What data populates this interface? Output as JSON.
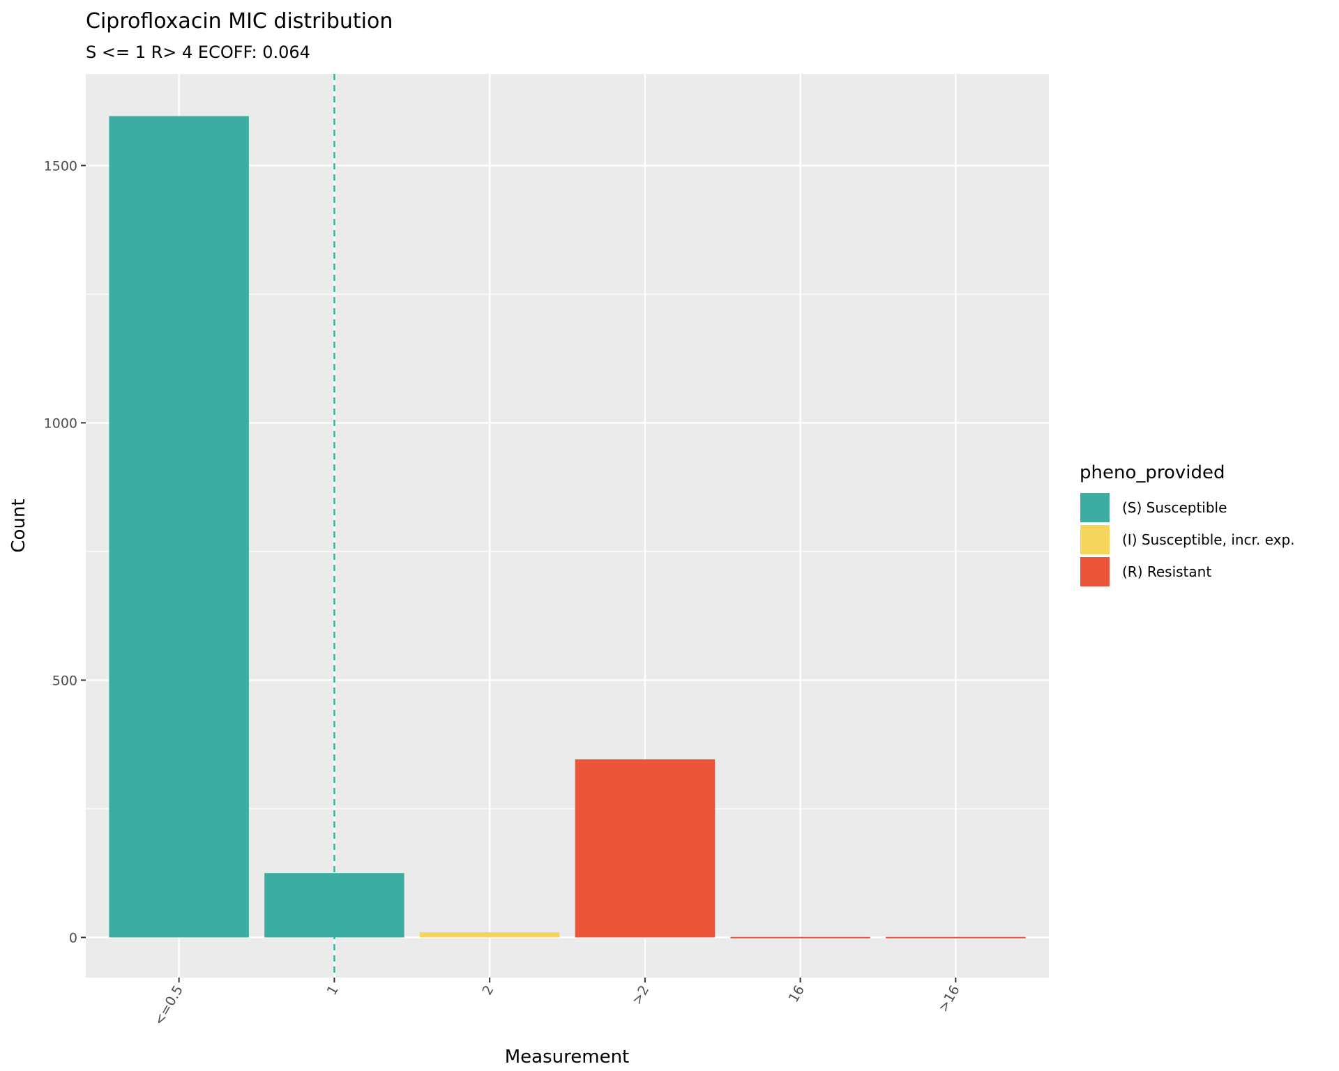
{
  "chart_data": {
    "type": "bar",
    "title": "Ciprofloxacin MIC distribution",
    "subtitle": "S <= 1 R> 4 ECOFF: 0.064",
    "xlabel": "Measurement",
    "ylabel": "Count",
    "categories": [
      "<=0.5",
      "1",
      "2",
      ">2",
      "16",
      ">16"
    ],
    "bars": [
      {
        "category": "<=0.5",
        "value": 1596,
        "group": "(S) Susceptible"
      },
      {
        "category": "1",
        "value": 125,
        "group": "(S) Susceptible"
      },
      {
        "category": "2",
        "value": 10,
        "group": "(I) Susceptible, incr. exp."
      },
      {
        "category": ">2",
        "value": 346,
        "group": "(R) Resistant"
      },
      {
        "category": "16",
        "value": 1,
        "group": "(R) Resistant"
      },
      {
        "category": ">16",
        "value": 1,
        "group": "(R) Resistant"
      }
    ],
    "yticks": [
      0,
      500,
      1000,
      1500
    ],
    "ylim": [
      -78,
      1678
    ],
    "reference_line": {
      "x_category": "1",
      "style": "dashed",
      "color": "#3dada2"
    },
    "legend": {
      "title": "pheno_provided",
      "placement": "right",
      "entries": [
        {
          "label": "(S) Susceptible",
          "color": "#3dada2"
        },
        {
          "label": "(I) Susceptible, incr. exp.",
          "color": "#f6d55c"
        },
        {
          "label": "(R) Resistant",
          "color": "#ed553b"
        }
      ]
    },
    "grid": true,
    "panel_background": "#ebebeb",
    "gridline_color": "#ffffff",
    "tick_label_rotation": "-60"
  }
}
